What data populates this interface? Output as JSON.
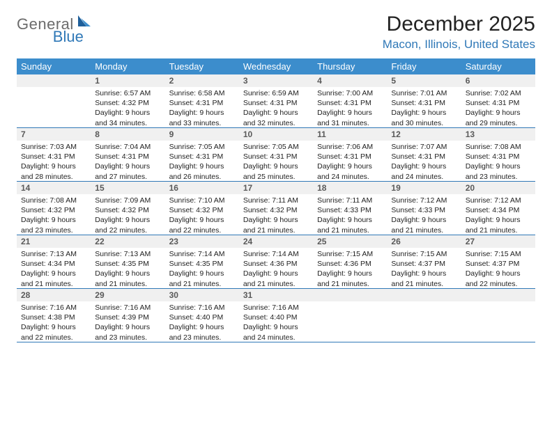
{
  "logo": {
    "general": "General",
    "blue": "Blue"
  },
  "title": "December 2025",
  "location": "Macon, Illinois, United States",
  "day_headers": [
    "Sunday",
    "Monday",
    "Tuesday",
    "Wednesday",
    "Thursday",
    "Friday",
    "Saturday"
  ],
  "colors": {
    "header_bg": "#3c8dcc",
    "accent": "#2f78b7",
    "daynum_bg": "#f0f0f0",
    "text": "#222222"
  },
  "weeks": [
    [
      null,
      {
        "n": "1",
        "sr": "Sunrise: 6:57 AM",
        "ss": "Sunset: 4:32 PM",
        "d1": "Daylight: 9 hours",
        "d2": "and 34 minutes."
      },
      {
        "n": "2",
        "sr": "Sunrise: 6:58 AM",
        "ss": "Sunset: 4:31 PM",
        "d1": "Daylight: 9 hours",
        "d2": "and 33 minutes."
      },
      {
        "n": "3",
        "sr": "Sunrise: 6:59 AM",
        "ss": "Sunset: 4:31 PM",
        "d1": "Daylight: 9 hours",
        "d2": "and 32 minutes."
      },
      {
        "n": "4",
        "sr": "Sunrise: 7:00 AM",
        "ss": "Sunset: 4:31 PM",
        "d1": "Daylight: 9 hours",
        "d2": "and 31 minutes."
      },
      {
        "n": "5",
        "sr": "Sunrise: 7:01 AM",
        "ss": "Sunset: 4:31 PM",
        "d1": "Daylight: 9 hours",
        "d2": "and 30 minutes."
      },
      {
        "n": "6",
        "sr": "Sunrise: 7:02 AM",
        "ss": "Sunset: 4:31 PM",
        "d1": "Daylight: 9 hours",
        "d2": "and 29 minutes."
      }
    ],
    [
      {
        "n": "7",
        "sr": "Sunrise: 7:03 AM",
        "ss": "Sunset: 4:31 PM",
        "d1": "Daylight: 9 hours",
        "d2": "and 28 minutes."
      },
      {
        "n": "8",
        "sr": "Sunrise: 7:04 AM",
        "ss": "Sunset: 4:31 PM",
        "d1": "Daylight: 9 hours",
        "d2": "and 27 minutes."
      },
      {
        "n": "9",
        "sr": "Sunrise: 7:05 AM",
        "ss": "Sunset: 4:31 PM",
        "d1": "Daylight: 9 hours",
        "d2": "and 26 minutes."
      },
      {
        "n": "10",
        "sr": "Sunrise: 7:05 AM",
        "ss": "Sunset: 4:31 PM",
        "d1": "Daylight: 9 hours",
        "d2": "and 25 minutes."
      },
      {
        "n": "11",
        "sr": "Sunrise: 7:06 AM",
        "ss": "Sunset: 4:31 PM",
        "d1": "Daylight: 9 hours",
        "d2": "and 24 minutes."
      },
      {
        "n": "12",
        "sr": "Sunrise: 7:07 AM",
        "ss": "Sunset: 4:31 PM",
        "d1": "Daylight: 9 hours",
        "d2": "and 24 minutes."
      },
      {
        "n": "13",
        "sr": "Sunrise: 7:08 AM",
        "ss": "Sunset: 4:31 PM",
        "d1": "Daylight: 9 hours",
        "d2": "and 23 minutes."
      }
    ],
    [
      {
        "n": "14",
        "sr": "Sunrise: 7:08 AM",
        "ss": "Sunset: 4:32 PM",
        "d1": "Daylight: 9 hours",
        "d2": "and 23 minutes."
      },
      {
        "n": "15",
        "sr": "Sunrise: 7:09 AM",
        "ss": "Sunset: 4:32 PM",
        "d1": "Daylight: 9 hours",
        "d2": "and 22 minutes."
      },
      {
        "n": "16",
        "sr": "Sunrise: 7:10 AM",
        "ss": "Sunset: 4:32 PM",
        "d1": "Daylight: 9 hours",
        "d2": "and 22 minutes."
      },
      {
        "n": "17",
        "sr": "Sunrise: 7:11 AM",
        "ss": "Sunset: 4:32 PM",
        "d1": "Daylight: 9 hours",
        "d2": "and 21 minutes."
      },
      {
        "n": "18",
        "sr": "Sunrise: 7:11 AM",
        "ss": "Sunset: 4:33 PM",
        "d1": "Daylight: 9 hours",
        "d2": "and 21 minutes."
      },
      {
        "n": "19",
        "sr": "Sunrise: 7:12 AM",
        "ss": "Sunset: 4:33 PM",
        "d1": "Daylight: 9 hours",
        "d2": "and 21 minutes."
      },
      {
        "n": "20",
        "sr": "Sunrise: 7:12 AM",
        "ss": "Sunset: 4:34 PM",
        "d1": "Daylight: 9 hours",
        "d2": "and 21 minutes."
      }
    ],
    [
      {
        "n": "21",
        "sr": "Sunrise: 7:13 AM",
        "ss": "Sunset: 4:34 PM",
        "d1": "Daylight: 9 hours",
        "d2": "and 21 minutes."
      },
      {
        "n": "22",
        "sr": "Sunrise: 7:13 AM",
        "ss": "Sunset: 4:35 PM",
        "d1": "Daylight: 9 hours",
        "d2": "and 21 minutes."
      },
      {
        "n": "23",
        "sr": "Sunrise: 7:14 AM",
        "ss": "Sunset: 4:35 PM",
        "d1": "Daylight: 9 hours",
        "d2": "and 21 minutes."
      },
      {
        "n": "24",
        "sr": "Sunrise: 7:14 AM",
        "ss": "Sunset: 4:36 PM",
        "d1": "Daylight: 9 hours",
        "d2": "and 21 minutes."
      },
      {
        "n": "25",
        "sr": "Sunrise: 7:15 AM",
        "ss": "Sunset: 4:36 PM",
        "d1": "Daylight: 9 hours",
        "d2": "and 21 minutes."
      },
      {
        "n": "26",
        "sr": "Sunrise: 7:15 AM",
        "ss": "Sunset: 4:37 PM",
        "d1": "Daylight: 9 hours",
        "d2": "and 21 minutes."
      },
      {
        "n": "27",
        "sr": "Sunrise: 7:15 AM",
        "ss": "Sunset: 4:37 PM",
        "d1": "Daylight: 9 hours",
        "d2": "and 22 minutes."
      }
    ],
    [
      {
        "n": "28",
        "sr": "Sunrise: 7:16 AM",
        "ss": "Sunset: 4:38 PM",
        "d1": "Daylight: 9 hours",
        "d2": "and 22 minutes."
      },
      {
        "n": "29",
        "sr": "Sunrise: 7:16 AM",
        "ss": "Sunset: 4:39 PM",
        "d1": "Daylight: 9 hours",
        "d2": "and 23 minutes."
      },
      {
        "n": "30",
        "sr": "Sunrise: 7:16 AM",
        "ss": "Sunset: 4:40 PM",
        "d1": "Daylight: 9 hours",
        "d2": "and 23 minutes."
      },
      {
        "n": "31",
        "sr": "Sunrise: 7:16 AM",
        "ss": "Sunset: 4:40 PM",
        "d1": "Daylight: 9 hours",
        "d2": "and 24 minutes."
      },
      null,
      null,
      null
    ]
  ]
}
